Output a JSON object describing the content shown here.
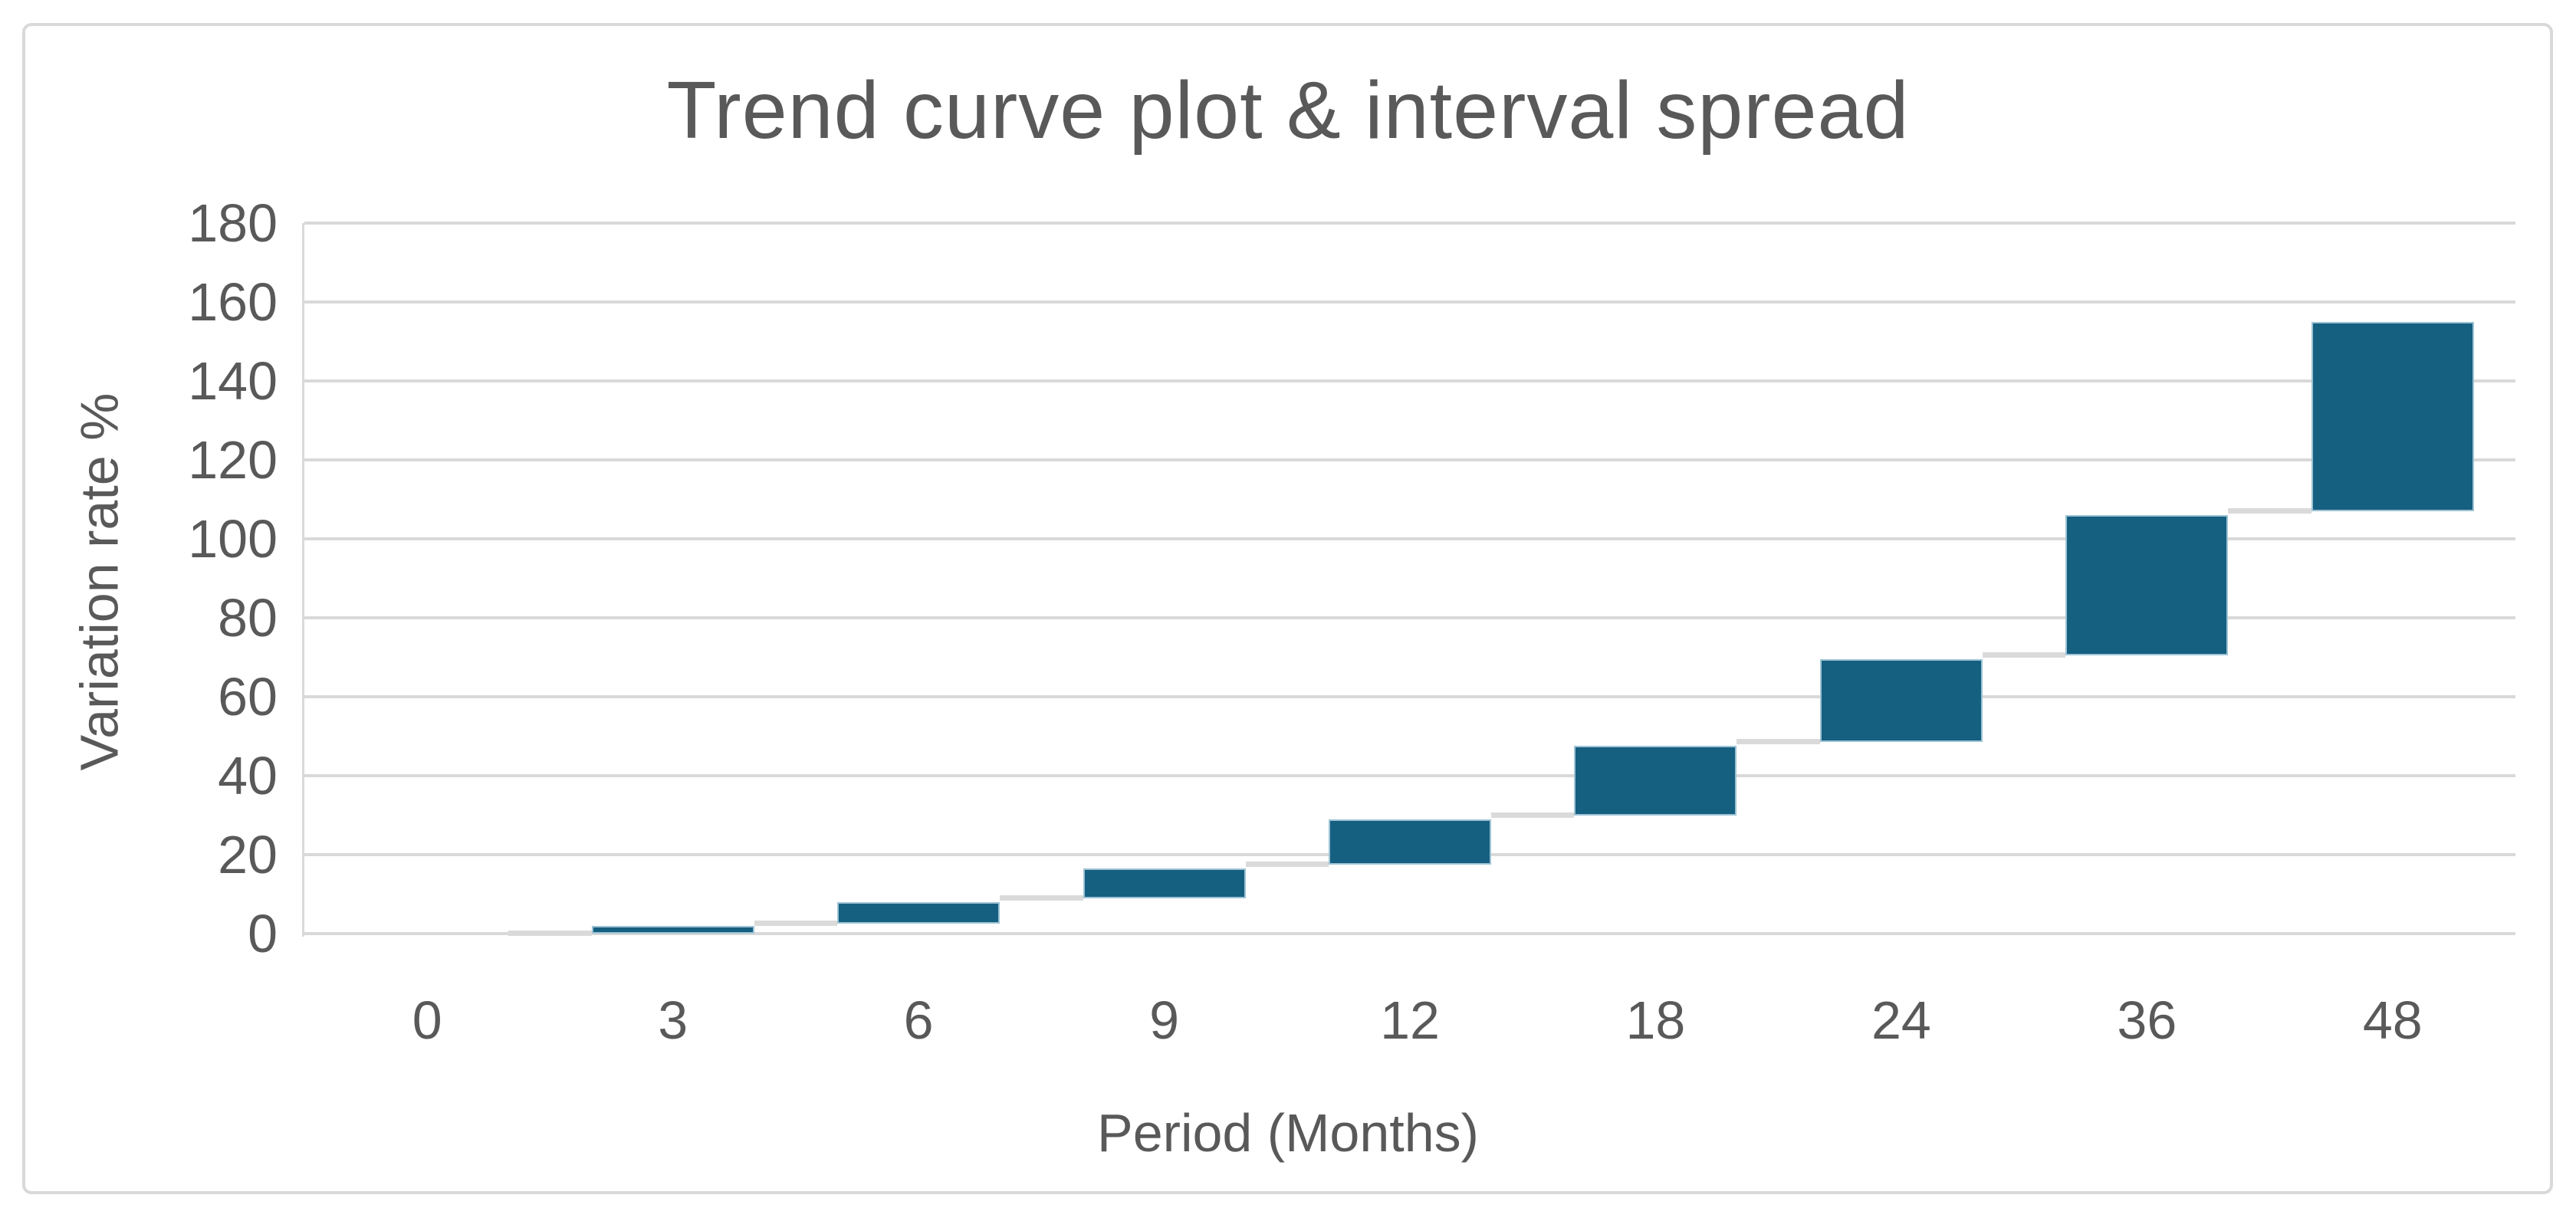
{
  "chart_data": {
    "type": "bar",
    "subtype": "floating-interval-waterfall",
    "title": "Trend curve plot & interval spread",
    "xlabel": "Period (Months)",
    "ylabel": "Variation rate %",
    "categories": [
      "0",
      "3",
      "6",
      "9",
      "12",
      "18",
      "24",
      "36",
      "48"
    ],
    "bars": [
      {
        "category": "0",
        "low": 0,
        "high": 0
      },
      {
        "category": "3",
        "low": 0,
        "high": 2
      },
      {
        "category": "6",
        "low": 2.5,
        "high": 8
      },
      {
        "category": "9",
        "low": 9,
        "high": 16.5
      },
      {
        "category": "12",
        "low": 17.5,
        "high": 29
      },
      {
        "category": "18",
        "low": 30,
        "high": 47.5
      },
      {
        "category": "24",
        "low": 48.5,
        "high": 69.5
      },
      {
        "category": "36",
        "low": 70.5,
        "high": 106
      },
      {
        "category": "48",
        "low": 107,
        "high": 155
      }
    ],
    "connectors_between_bars": true,
    "ylim": [
      0,
      180
    ],
    "ytick_step": 20,
    "yticks": [
      0,
      20,
      40,
      60,
      80,
      100,
      120,
      140,
      160,
      180
    ],
    "grid": true,
    "legend": false,
    "colors": {
      "bar_fill": "#155F81",
      "bar_border": "#9DC3D4",
      "gridline": "#D9D9D9",
      "axis_line": "#D9D9D9",
      "connector": "#DADADA",
      "frame_border": "#D9D9D9",
      "text": "#595959",
      "background": "#FFFFFF"
    }
  }
}
